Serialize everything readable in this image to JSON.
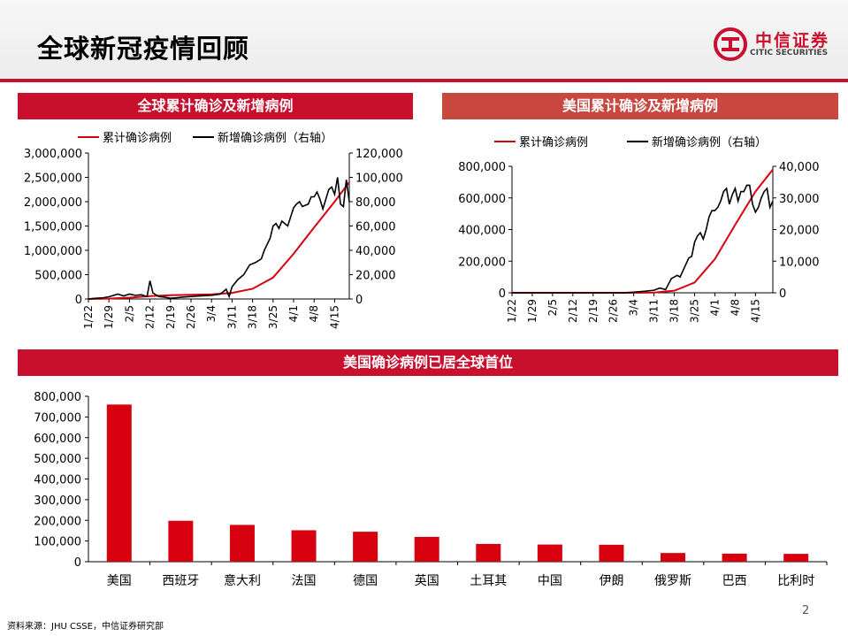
{
  "header": {
    "title": "全球新冠疫情回顾",
    "logo_cn": "中信证券",
    "logo_en": "CITIC SECURITIES"
  },
  "footer": {
    "source": "资料来源：JHU CSSE，中信证券研究部",
    "page": "2"
  },
  "colors": {
    "red": "#d7000f",
    "black": "#000000",
    "banner": "#c8102e"
  },
  "chart_data": [
    {
      "type": "line",
      "title": "全球累计确诊及新增病例",
      "x_ticks": [
        "1/22",
        "1/29",
        "2/5",
        "2/12",
        "2/19",
        "2/26",
        "3/4",
        "3/11",
        "3/18",
        "3/25",
        "4/1",
        "4/8",
        "4/15"
      ],
      "start_date": "1/22",
      "days": 89,
      "ylim": [
        0,
        3000000
      ],
      "y_ticks": [
        "3,000,000",
        "2,500,000",
        "2,000,000",
        "1,500,000",
        "1,000,000",
        "500,000",
        "0"
      ],
      "y2lim": [
        0,
        120000
      ],
      "y2_ticks": [
        "120,000",
        "100,000",
        "80,000",
        "60,000",
        "40,000",
        "20,000",
        "0"
      ],
      "legend": "top",
      "series": [
        {
          "name": "累计确诊病例",
          "axis": "left",
          "color": "#d7000f",
          "values": [
            [
              0,
              555
            ],
            [
              7,
              7800
            ],
            [
              14,
              28000
            ],
            [
              21,
              60000
            ],
            [
              28,
              78000
            ],
            [
              35,
              86000
            ],
            [
              42,
              96000
            ],
            [
              49,
              125000
            ],
            [
              56,
              210000
            ],
            [
              63,
              440000
            ],
            [
              70,
              930000
            ],
            [
              77,
              1470000
            ],
            [
              84,
              2000000
            ],
            [
              89,
              2400000
            ]
          ]
        },
        {
          "name": "新增确诊病例（右轴）",
          "axis": "right",
          "color": "#000000",
          "values": [
            [
              0,
              0
            ],
            [
              2,
              500
            ],
            [
              5,
              1000
            ],
            [
              7,
              1800
            ],
            [
              10,
              4000
            ],
            [
              12,
              2500
            ],
            [
              14,
              4000
            ],
            [
              16,
              3000
            ],
            [
              18,
              3500
            ],
            [
              20,
              2000
            ],
            [
              21,
              15000
            ],
            [
              22,
              5000
            ],
            [
              24,
              2000
            ],
            [
              26,
              1500
            ],
            [
              28,
              600
            ],
            [
              30,
              1000
            ],
            [
              32,
              1500
            ],
            [
              35,
              2000
            ],
            [
              38,
              2500
            ],
            [
              42,
              3000
            ],
            [
              45,
              4000
            ],
            [
              47,
              8000
            ],
            [
              48,
              2000
            ],
            [
              49,
              10000
            ],
            [
              51,
              16000
            ],
            [
              53,
              20000
            ],
            [
              55,
              28000
            ],
            [
              57,
              30000
            ],
            [
              59,
              33000
            ],
            [
              60,
              40000
            ],
            [
              62,
              50000
            ],
            [
              63,
              60000
            ],
            [
              64,
              62000
            ],
            [
              65,
              58000
            ],
            [
              66,
              64000
            ],
            [
              68,
              60000
            ],
            [
              70,
              75000
            ],
            [
              71,
              78000
            ],
            [
              72,
              80000
            ],
            [
              73,
              76000
            ],
            [
              75,
              78000
            ],
            [
              76,
              84000
            ],
            [
              77,
              84000
            ],
            [
              78,
              88000
            ],
            [
              79,
              82000
            ],
            [
              80,
              74000
            ],
            [
              81,
              82000
            ],
            [
              82,
              90000
            ],
            [
              83,
              92000
            ],
            [
              84,
              86000
            ],
            [
              85,
              100000
            ],
            [
              86,
              78000
            ],
            [
              87,
              76000
            ],
            [
              88,
              98000
            ],
            [
              89,
              80000
            ]
          ]
        }
      ]
    },
    {
      "type": "line",
      "title": "美国累计确诊及新增病例",
      "x_ticks": [
        "1/22",
        "1/29",
        "2/5",
        "2/12",
        "2/19",
        "2/26",
        "3/4",
        "3/11",
        "3/18",
        "3/25",
        "4/1",
        "4/8",
        "4/15"
      ],
      "start_date": "1/22",
      "days": 90,
      "ylim": [
        0,
        800000
      ],
      "y_ticks": [
        "800,000",
        "600,000",
        "400,000",
        "200,000",
        "0"
      ],
      "y2lim": [
        0,
        40000
      ],
      "y2_ticks": [
        "40,000",
        "30,000",
        "20,000",
        "10,000",
        "0"
      ],
      "legend": "top",
      "series": [
        {
          "name": "累计确诊病例",
          "axis": "left",
          "color": "#d7000f",
          "values": [
            [
              0,
              1
            ],
            [
              40,
              100
            ],
            [
              49,
              1300
            ],
            [
              56,
              13000
            ],
            [
              63,
              65000
            ],
            [
              70,
              213000
            ],
            [
              77,
              430000
            ],
            [
              84,
              640000
            ],
            [
              90,
              780000
            ]
          ]
        },
        {
          "name": "新增确诊病例（右轴）",
          "axis": "right",
          "color": "#000000",
          "values": [
            [
              0,
              0
            ],
            [
              38,
              0
            ],
            [
              42,
              200
            ],
            [
              46,
              500
            ],
            [
              49,
              800
            ],
            [
              51,
              1500
            ],
            [
              53,
              1000
            ],
            [
              55,
              4500
            ],
            [
              57,
              5500
            ],
            [
              58,
              5000
            ],
            [
              60,
              9000
            ],
            [
              61,
              11000
            ],
            [
              62,
              11500
            ],
            [
              63,
              16000
            ],
            [
              64,
              18000
            ],
            [
              65,
              19000
            ],
            [
              66,
              17000
            ],
            [
              67,
              20000
            ],
            [
              68,
              24000
            ],
            [
              69,
              26000
            ],
            [
              70,
              26000
            ],
            [
              71,
              27000
            ],
            [
              72,
              29000
            ],
            [
              73,
              32000
            ],
            [
              74,
              33000
            ],
            [
              75,
              28000
            ],
            [
              76,
              31000
            ],
            [
              77,
              33000
            ],
            [
              78,
              29000
            ],
            [
              79,
              32000
            ],
            [
              80,
              32000
            ],
            [
              81,
              34000
            ],
            [
              82,
              34000
            ],
            [
              83,
              28000
            ],
            [
              84,
              25500
            ],
            [
              85,
              27000
            ],
            [
              86,
              30000
            ],
            [
              87,
              32000
            ],
            [
              88,
              33000
            ],
            [
              89,
              27000
            ],
            [
              90,
              29000
            ]
          ]
        }
      ]
    },
    {
      "type": "bar",
      "title": "美国确诊病例已居全球首位",
      "categories": [
        "美国",
        "西班牙",
        "意大利",
        "法国",
        "德国",
        "英国",
        "土耳其",
        "中国",
        "伊朗",
        "俄罗斯",
        "巴西",
        "比利时"
      ],
      "values": [
        760000,
        198000,
        178000,
        152000,
        145000,
        120000,
        86000,
        83000,
        82000,
        42000,
        39000,
        38000
      ],
      "ylim": [
        0,
        800000
      ],
      "y_ticks": [
        "800,000",
        "700,000",
        "600,000",
        "500,000",
        "400,000",
        "300,000",
        "200,000",
        "100,000",
        "0"
      ],
      "color": "#d7000f"
    }
  ]
}
